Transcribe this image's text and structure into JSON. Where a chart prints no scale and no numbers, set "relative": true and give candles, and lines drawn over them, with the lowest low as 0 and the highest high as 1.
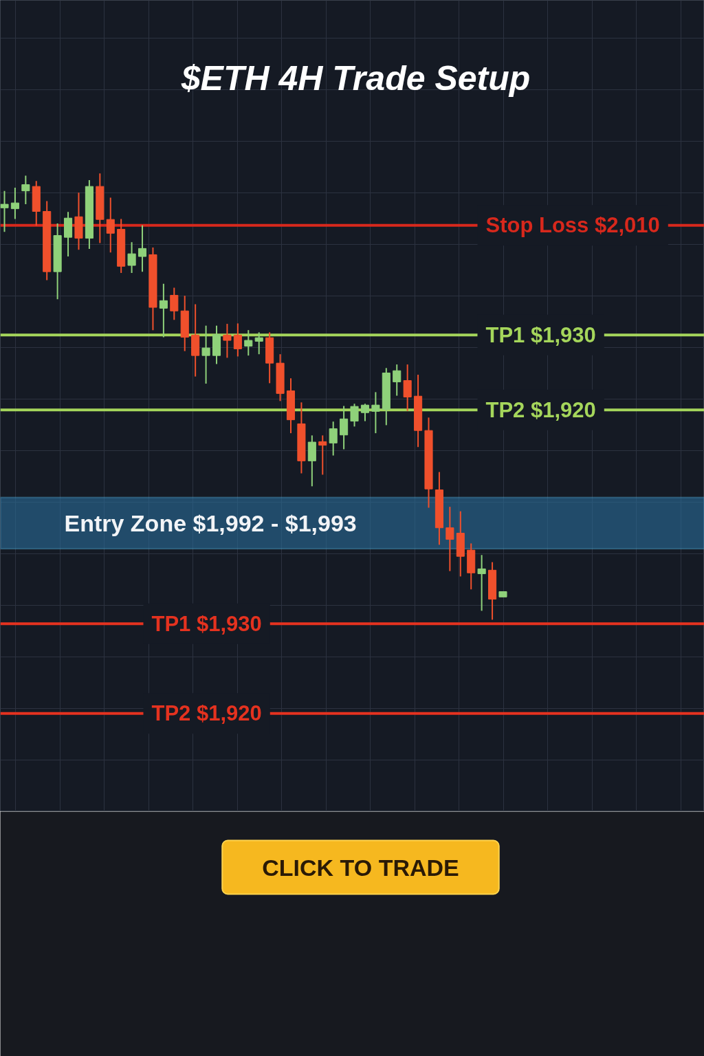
{
  "chart_data": {
    "type": "candlestick",
    "title": "$ETH 4H Trade Setup",
    "relative": true,
    "grid": true,
    "tick_labels": false,
    "categories": [
      null,
      null,
      null,
      null,
      null,
      null,
      null,
      null,
      null,
      null,
      null,
      null,
      null,
      null,
      null,
      null,
      null,
      null,
      null,
      null,
      null,
      null,
      null,
      null,
      null,
      null,
      null,
      null,
      null,
      null,
      null,
      null,
      null,
      null,
      null,
      null,
      null,
      null,
      null,
      null,
      null,
      null,
      null,
      null,
      null,
      null,
      null,
      null
    ],
    "ohlc": [
      [
        0.923,
        0.961,
        0.869,
        0.931
      ],
      [
        0.921,
        0.968,
        0.898,
        0.934
      ],
      [
        0.961,
        0.995,
        0.931,
        0.975
      ],
      [
        0.971,
        0.983,
        0.883,
        0.915
      ],
      [
        0.915,
        0.938,
        0.761,
        0.78
      ],
      [
        0.78,
        0.888,
        0.718,
        0.861
      ],
      [
        0.857,
        0.914,
        0.814,
        0.9
      ],
      [
        0.903,
        0.957,
        0.829,
        0.855
      ],
      [
        0.855,
        0.985,
        0.831,
        0.971
      ],
      [
        0.971,
        1.0,
        0.844,
        0.897
      ],
      [
        0.897,
        0.946,
        0.823,
        0.866
      ],
      [
        0.875,
        0.898,
        0.777,
        0.792
      ],
      [
        0.794,
        0.846,
        0.777,
        0.82
      ],
      [
        0.814,
        0.884,
        0.78,
        0.832
      ],
      [
        0.818,
        0.834,
        0.649,
        0.7
      ],
      [
        0.698,
        0.753,
        0.633,
        0.715
      ],
      [
        0.727,
        0.744,
        0.672,
        0.692
      ],
      [
        0.692,
        0.726,
        0.602,
        0.633
      ],
      [
        0.638,
        0.707,
        0.545,
        0.592
      ],
      [
        0.592,
        0.659,
        0.529,
        0.609
      ],
      [
        0.592,
        0.659,
        0.573,
        0.639
      ],
      [
        0.638,
        0.663,
        0.587,
        0.626
      ],
      [
        0.638,
        0.664,
        0.59,
        0.607
      ],
      [
        0.613,
        0.649,
        0.592,
        0.626
      ],
      [
        0.624,
        0.644,
        0.595,
        0.632
      ],
      [
        0.632,
        0.644,
        0.53,
        0.575
      ],
      [
        0.575,
        0.595,
        0.49,
        0.507
      ],
      [
        0.513,
        0.541,
        0.418,
        0.448
      ],
      [
        0.439,
        0.487,
        0.328,
        0.356
      ],
      [
        0.356,
        0.413,
        0.299,
        0.398
      ],
      [
        0.399,
        0.413,
        0.325,
        0.391
      ],
      [
        0.396,
        0.444,
        0.368,
        0.428
      ],
      [
        0.414,
        0.479,
        0.382,
        0.45
      ],
      [
        0.445,
        0.484,
        0.433,
        0.478
      ],
      [
        0.464,
        0.484,
        0.445,
        0.481
      ],
      [
        0.467,
        0.51,
        0.418,
        0.481
      ],
      [
        0.471,
        0.564,
        0.436,
        0.553
      ],
      [
        0.533,
        0.572,
        0.502,
        0.558
      ],
      [
        0.536,
        0.572,
        0.468,
        0.499
      ],
      [
        0.501,
        0.549,
        0.387,
        0.424
      ],
      [
        0.424,
        0.453,
        0.251,
        0.293
      ],
      [
        0.291,
        0.331,
        0.168,
        0.206
      ],
      [
        0.206,
        0.253,
        0.109,
        0.18
      ],
      [
        0.194,
        0.243,
        0.097,
        0.142
      ],
      [
        0.156,
        0.171,
        0.068,
        0.105
      ],
      [
        0.103,
        0.145,
        0.02,
        0.114
      ],
      [
        0.111,
        0.129,
        0.0,
        0.046
      ],
      [
        0.051,
        0.063,
        0.051,
        0.063
      ]
    ],
    "colors": [
      "#8fd17a",
      "#8fd17a",
      "#8fd17a",
      "#f0502c",
      "#f0502c",
      "#8fd17a",
      "#8fd17a",
      "#f0502c",
      "#8fd17a",
      "#f0502c",
      "#f0502c",
      "#f0502c",
      "#8fd17a",
      "#8fd17a",
      "#f0502c",
      "#8fd17a",
      "#f0502c",
      "#f0502c",
      "#f0502c",
      "#8fd17a",
      "#8fd17a",
      "#f0502c",
      "#f0502c",
      "#8fd17a",
      "#8fd17a",
      "#f0502c",
      "#f0502c",
      "#f0502c",
      "#f0502c",
      "#8fd17a",
      "#f0502c",
      "#8fd17a",
      "#8fd17a",
      "#8fd17a",
      "#8fd17a",
      "#8fd17a",
      "#8fd17a",
      "#8fd17a",
      "#f0502c",
      "#f0502c",
      "#f0502c",
      "#f0502c",
      "#f0502c",
      "#f0502c",
      "#f0502c",
      "#8fd17a",
      "#f0502c",
      "#8fd17a"
    ],
    "ref_lines": [
      {
        "axis": "y",
        "value": 0.884,
        "label": "Stop Loss $2,010",
        "color": "#d8281c"
      },
      {
        "axis": "y",
        "value": 0.638,
        "label": "TP1 $1,930",
        "color": "#a5d65b"
      },
      {
        "axis": "y",
        "value": 0.47,
        "label": "TP2 $1,920",
        "color": "#a5d65b"
      },
      {
        "axis": "y",
        "value": -0.009,
        "label": "TP1 $1,930",
        "color": "#e5321f"
      },
      {
        "axis": "y",
        "value": -0.21,
        "label": "TP2 $1,920",
        "color": "#e5321f"
      }
    ],
    "bands": [
      {
        "axis": "y",
        "from": 0.159,
        "to": 0.274,
        "label": "Entry Zone $1,992 - $1,993",
        "color": "#2a6d9a"
      }
    ],
    "annotations": [
      "CLICK TO TRADE"
    ]
  }
}
